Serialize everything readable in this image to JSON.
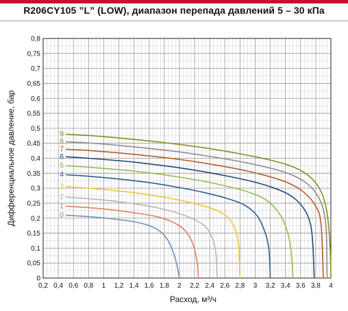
{
  "header": {
    "title": "R206CY105 ”L” (LOW), диапазон перепада давлений 5 – 30 кПа",
    "accent_color": "#c4122f"
  },
  "chart_data": {
    "type": "line",
    "title": "R206CY105 ”L” (LOW), диапазон перепада давлений 5 – 30 кПа",
    "xlabel": "Расход, м³/ч",
    "ylabel": "Дифференциальное давление, бар",
    "xlim": [
      0.2,
      4.0
    ],
    "ylim": [
      0,
      0.8
    ],
    "x_ticks": [
      "0,2",
      "0,4",
      "0,6",
      "0,8",
      "1",
      "1,2",
      "1,4",
      "1,6",
      "1,8",
      "2",
      "2,2",
      "2,4",
      "2,6",
      "2,8",
      "3",
      "3,2",
      "3,4",
      "3,6",
      "3,8",
      "4"
    ],
    "y_ticks": [
      "0",
      "0,05",
      "0,1",
      "0,15",
      "0,2",
      "0,25",
      "0,3",
      "0,35",
      "0,4",
      "0,45",
      "0,5",
      "0,55",
      "0,6",
      "0,65",
      "0,7",
      "0,75",
      "0,8"
    ],
    "grid": true,
    "series": [
      {
        "name": "0",
        "color": "#6f8fb5",
        "points": [
          [
            0.5,
            0.21
          ],
          [
            0.8,
            0.205
          ],
          [
            1.1,
            0.198
          ],
          [
            1.4,
            0.188
          ],
          [
            1.6,
            0.175
          ],
          [
            1.75,
            0.155
          ],
          [
            1.85,
            0.125
          ],
          [
            1.92,
            0.085
          ],
          [
            1.97,
            0.04
          ],
          [
            2.0,
            0.0
          ]
        ]
      },
      {
        "name": "1",
        "color": "#e0805a",
        "points": [
          [
            0.5,
            0.24
          ],
          [
            0.8,
            0.235
          ],
          [
            1.1,
            0.228
          ],
          [
            1.4,
            0.218
          ],
          [
            1.7,
            0.205
          ],
          [
            1.9,
            0.188
          ],
          [
            2.05,
            0.165
          ],
          [
            2.15,
            0.13
          ],
          [
            2.21,
            0.085
          ],
          [
            2.24,
            0.04
          ],
          [
            2.25,
            0.0
          ]
        ]
      },
      {
        "name": "2",
        "color": "#b5b5b5",
        "points": [
          [
            0.5,
            0.27
          ],
          [
            0.8,
            0.265
          ],
          [
            1.1,
            0.258
          ],
          [
            1.4,
            0.248
          ],
          [
            1.7,
            0.235
          ],
          [
            2.0,
            0.215
          ],
          [
            2.2,
            0.195
          ],
          [
            2.35,
            0.17
          ],
          [
            2.44,
            0.13
          ],
          [
            2.48,
            0.085
          ],
          [
            2.5,
            0.0
          ]
        ]
      },
      {
        "name": "3",
        "color": "#f2c43a",
        "points": [
          [
            0.5,
            0.305
          ],
          [
            0.8,
            0.3
          ],
          [
            1.1,
            0.293
          ],
          [
            1.4,
            0.285
          ],
          [
            1.7,
            0.274
          ],
          [
            2.0,
            0.26
          ],
          [
            2.3,
            0.242
          ],
          [
            2.5,
            0.225
          ],
          [
            2.65,
            0.2
          ],
          [
            2.74,
            0.16
          ],
          [
            2.78,
            0.11
          ],
          [
            2.8,
            0.0
          ]
        ]
      },
      {
        "name": "4",
        "color": "#2c5f8a",
        "points": [
          [
            0.5,
            0.345
          ],
          [
            0.8,
            0.34
          ],
          [
            1.1,
            0.333
          ],
          [
            1.4,
            0.325
          ],
          [
            1.7,
            0.315
          ],
          [
            2.0,
            0.302
          ],
          [
            2.3,
            0.287
          ],
          [
            2.6,
            0.268
          ],
          [
            2.85,
            0.245
          ],
          [
            3.02,
            0.21
          ],
          [
            3.12,
            0.16
          ],
          [
            3.18,
            0.1
          ],
          [
            3.2,
            0.0
          ]
        ]
      },
      {
        "name": "5",
        "color": "#93bd4c",
        "points": [
          [
            0.5,
            0.375
          ],
          [
            0.8,
            0.37
          ],
          [
            1.1,
            0.364
          ],
          [
            1.4,
            0.357
          ],
          [
            1.7,
            0.348
          ],
          [
            2.0,
            0.337
          ],
          [
            2.3,
            0.324
          ],
          [
            2.6,
            0.308
          ],
          [
            2.9,
            0.288
          ],
          [
            3.15,
            0.26
          ],
          [
            3.32,
            0.215
          ],
          [
            3.42,
            0.16
          ],
          [
            3.47,
            0.1
          ],
          [
            3.5,
            0.0
          ]
        ]
      },
      {
        "name": "6",
        "color": "#1e4a78",
        "points": [
          [
            0.5,
            0.405
          ],
          [
            0.8,
            0.4
          ],
          [
            1.1,
            0.394
          ],
          [
            1.4,
            0.387
          ],
          [
            1.7,
            0.378
          ],
          [
            2.0,
            0.368
          ],
          [
            2.3,
            0.356
          ],
          [
            2.6,
            0.342
          ],
          [
            2.9,
            0.326
          ],
          [
            3.2,
            0.305
          ],
          [
            3.45,
            0.278
          ],
          [
            3.62,
            0.24
          ],
          [
            3.72,
            0.19
          ],
          [
            3.76,
            0.12
          ],
          [
            3.78,
            0.0
          ]
        ]
      },
      {
        "name": "7",
        "color": "#b55a2a",
        "points": [
          [
            0.5,
            0.43
          ],
          [
            0.8,
            0.426
          ],
          [
            1.1,
            0.42
          ],
          [
            1.4,
            0.413
          ],
          [
            1.7,
            0.405
          ],
          [
            2.0,
            0.396
          ],
          [
            2.3,
            0.385
          ],
          [
            2.6,
            0.372
          ],
          [
            2.9,
            0.357
          ],
          [
            3.2,
            0.338
          ],
          [
            3.45,
            0.316
          ],
          [
            3.65,
            0.285
          ],
          [
            3.8,
            0.24
          ],
          [
            3.87,
            0.18
          ],
          [
            3.9,
            0.0
          ]
        ]
      },
      {
        "name": "8",
        "color": "#8b8b8b",
        "points": [
          [
            0.5,
            0.455
          ],
          [
            0.8,
            0.451
          ],
          [
            1.1,
            0.445
          ],
          [
            1.4,
            0.438
          ],
          [
            1.7,
            0.43
          ],
          [
            2.0,
            0.421
          ],
          [
            2.3,
            0.41
          ],
          [
            2.6,
            0.398
          ],
          [
            2.9,
            0.384
          ],
          [
            3.2,
            0.367
          ],
          [
            3.45,
            0.348
          ],
          [
            3.65,
            0.322
          ],
          [
            3.8,
            0.285
          ],
          [
            3.9,
            0.23
          ],
          [
            3.94,
            0.15
          ],
          [
            3.95,
            0.0
          ]
        ]
      },
      {
        "name": "9",
        "color": "#8c8a1f",
        "points": [
          [
            0.5,
            0.48
          ],
          [
            0.8,
            0.476
          ],
          [
            1.1,
            0.47
          ],
          [
            1.4,
            0.463
          ],
          [
            1.7,
            0.455
          ],
          [
            2.0,
            0.446
          ],
          [
            2.3,
            0.436
          ],
          [
            2.6,
            0.424
          ],
          [
            2.9,
            0.41
          ],
          [
            3.2,
            0.394
          ],
          [
            3.45,
            0.376
          ],
          [
            3.65,
            0.352
          ],
          [
            3.8,
            0.318
          ],
          [
            3.9,
            0.27
          ],
          [
            3.96,
            0.2
          ],
          [
            3.99,
            0.1
          ],
          [
            4.0,
            0.0
          ]
        ]
      }
    ]
  }
}
